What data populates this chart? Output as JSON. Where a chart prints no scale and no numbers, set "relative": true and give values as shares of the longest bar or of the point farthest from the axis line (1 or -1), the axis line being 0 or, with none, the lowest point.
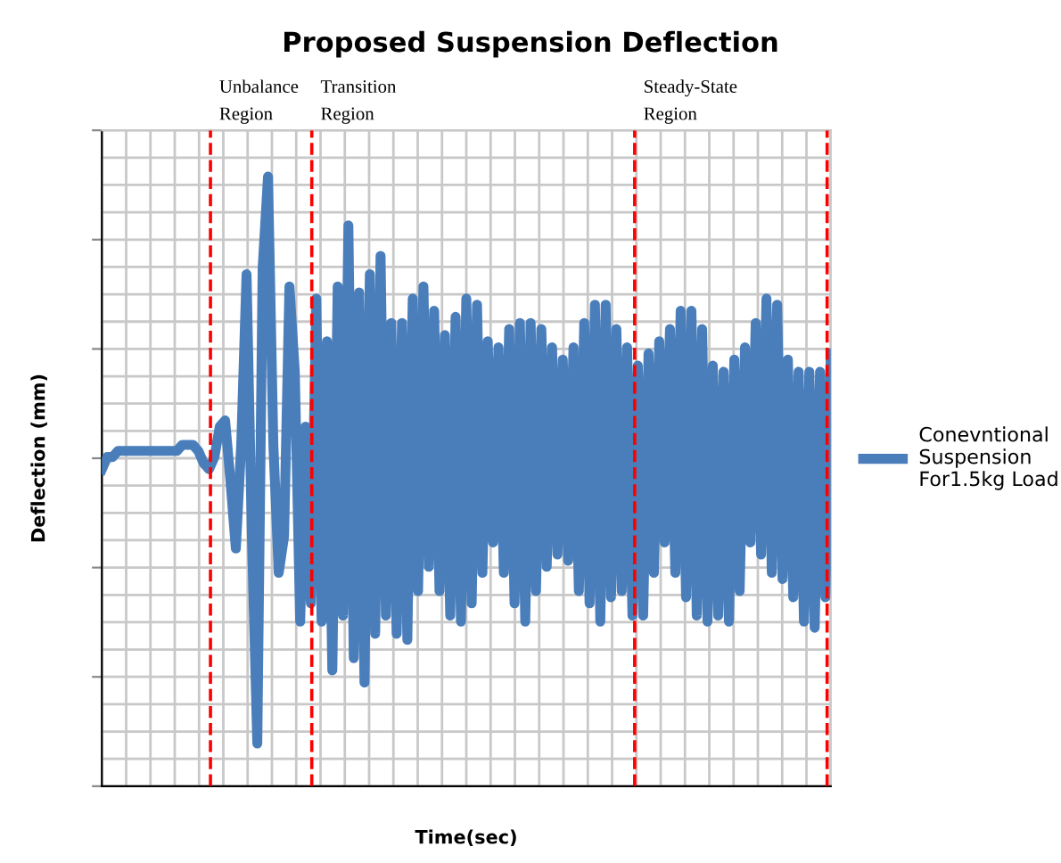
{
  "chart_data": {
    "type": "line",
    "title": "Proposed Suspension Deflection",
    "xlabel": "Time(sec)",
    "ylabel": "Deflection (mm)",
    "relative": true,
    "grid": true,
    "legend": "right",
    "tick_labels": false,
    "line_style": "solid",
    "categories": [
      null,
      null,
      null,
      null,
      null,
      null,
      null,
      null,
      null,
      null,
      null,
      null,
      null,
      null,
      null,
      null,
      null,
      null,
      null,
      null,
      null,
      null,
      null,
      null,
      null,
      null,
      null,
      null,
      null,
      null,
      null,
      null,
      null,
      null,
      null,
      null,
      null,
      null,
      null,
      null,
      null,
      null,
      null,
      null,
      null,
      null,
      null,
      null,
      null,
      null,
      null,
      null,
      null,
      null,
      null,
      null,
      null,
      null,
      null,
      null,
      null,
      null,
      null,
      null,
      null,
      null,
      null,
      null,
      null,
      null,
      null,
      null,
      null,
      null,
      null,
      null,
      null,
      null,
      null,
      null,
      null,
      null,
      null,
      null,
      null,
      null,
      null,
      null,
      null,
      null,
      null,
      null,
      null,
      null,
      null,
      null,
      null,
      null,
      null,
      null,
      null,
      null,
      null,
      null,
      null,
      null,
      null,
      null,
      null,
      null,
      null,
      null,
      null,
      null,
      null,
      null,
      null,
      null,
      null,
      null,
      null,
      null,
      null,
      null,
      null,
      null,
      null,
      null,
      null,
      null,
      null,
      null,
      null,
      null,
      null,
      null,
      null
    ],
    "series": [
      {
        "name": "Conevntional\nSuspension\nFor1.5kg Load",
        "color": "#4a7ebb",
        "values": [
          0.52,
          0.54,
          0.54,
          0.55,
          0.55,
          0.55,
          0.55,
          0.55,
          0.55,
          0.55,
          0.55,
          0.55,
          0.55,
          0.55,
          0.55,
          0.56,
          0.56,
          0.56,
          0.55,
          0.53,
          0.52,
          0.54,
          0.59,
          0.6,
          0.5,
          0.39,
          0.56,
          0.84,
          0.41,
          0.07,
          0.85,
          1.0,
          0.56,
          0.35,
          0.41,
          0.82,
          0.68,
          0.27,
          0.59,
          0.3,
          0.8,
          0.27,
          0.73,
          0.19,
          0.82,
          0.28,
          0.92,
          0.21,
          0.81,
          0.17,
          0.84,
          0.25,
          0.87,
          0.28,
          0.76,
          0.25,
          0.76,
          0.24,
          0.8,
          0.32,
          0.82,
          0.36,
          0.78,
          0.32,
          0.74,
          0.28,
          0.77,
          0.27,
          0.8,
          0.3,
          0.79,
          0.35,
          0.73,
          0.4,
          0.72,
          0.35,
          0.75,
          0.3,
          0.76,
          0.27,
          0.76,
          0.32,
          0.75,
          0.36,
          0.72,
          0.38,
          0.7,
          0.37,
          0.72,
          0.32,
          0.76,
          0.3,
          0.79,
          0.27,
          0.79,
          0.31,
          0.75,
          0.32,
          0.72,
          0.28,
          0.69,
          0.28,
          0.71,
          0.35,
          0.73,
          0.4,
          0.75,
          0.35,
          0.78,
          0.31,
          0.78,
          0.28,
          0.75,
          0.27,
          0.69,
          0.28,
          0.68,
          0.27,
          0.7,
          0.32,
          0.72,
          0.4,
          0.76,
          0.38,
          0.8,
          0.35,
          0.79,
          0.34,
          0.7,
          0.31,
          0.68,
          0.27,
          0.68,
          0.26,
          0.68,
          0.31,
          0.71
        ]
      }
    ],
    "annotations": [
      "Unbalance\nRegion",
      "Transition\nRegion",
      "Steady-State\nRegion"
    ]
  }
}
